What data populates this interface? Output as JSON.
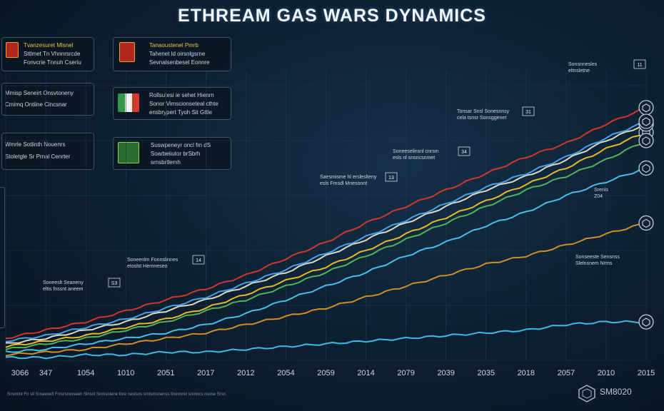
{
  "title": "ETHREAM GAS WARS DYNAMICS",
  "cards": [
    {
      "id": "card-1",
      "lines": [
        "Tvanzesuret Mlsnel",
        "Sttlmet Tn Vhnnrsrcde",
        "Fonvcrie Tnnuh Cseriu"
      ]
    },
    {
      "id": "card-2",
      "lines": [
        "Tanaoustenel Pmrb",
        "Tahenet ld oirsnlgsrne",
        "Sevnalsenbesel Eonnre"
      ]
    },
    {
      "id": "card-3",
      "lines": [
        "Mmisp Seneirt Onsvtoneny",
        "Cmimq Ontiine Cincsnar"
      ]
    },
    {
      "id": "card-4",
      "lines": [
        "Rollsutesi ie sehet Hienrn",
        "Sonor Vimscionseteal cthte",
        "ensbrypert Tyoh Sit Gttle"
      ]
    },
    {
      "id": "card-5",
      "lines": [
        "Wmrle Sotlinth Nouenrs",
        "Stoletgle Sr Prnal Cenrter"
      ]
    },
    {
      "id": "card-6",
      "lines": [
        "Suswpeneyr oncl fm dS",
        "Soarbeiiutor brSbrh",
        "srnsbrtlemh"
      ]
    }
  ],
  "annotations": [
    {
      "lines": [
        "Soneeslt Seaneny",
        "eltis fnssnt aneem"
      ],
      "tag": "S3"
    },
    {
      "lines": [
        "Soneenlm Fonnslinnes",
        "etoslst Hernneseo"
      ],
      "tag": "14"
    },
    {
      "lines": [
        "Saesmisme hl ersleslteny",
        "esls Fmsdl Mnesonnt"
      ],
      "tag": "13"
    },
    {
      "lines": [
        "Soneeselinsnl cnrsm",
        "esls nl snsncsnmet"
      ],
      "tag": "34"
    },
    {
      "lines": [
        "Tonsar Snsl Sonesnnsy",
        "cela tsnsr Sonsggenet"
      ],
      "tag": "31"
    },
    {
      "lines": [
        "Sonsnnesles",
        "eltnsletne"
      ],
      "tag": "11"
    },
    {
      "lines": [
        "Sonseeste Sensnss",
        "Slelnsnem Nrms"
      ],
      "tag": ""
    },
    {
      "lines": [
        "Srenis",
        "Z04"
      ],
      "tag": ""
    }
  ],
  "footer": "Snsmlnt Fn stl Srnaeoelt Fmsrsronseen Slnsnl Snmsnlene fnre neslsns srnlsmsnenss fnsnmrel snmncs nsnse Srsn",
  "logo_text": "SM8020",
  "chart_data": {
    "type": "line",
    "categories": [
      "3066",
      "347",
      "1054",
      "1010",
      "2051",
      "2017",
      "2012",
      "2054",
      "2059",
      "2014",
      "2079",
      "2039",
      "2035",
      "2018",
      "2057",
      "2010",
      "2015"
    ],
    "ylim": [
      0,
      100
    ],
    "series": [
      {
        "color": "#d8392c",
        "values": [
          8,
          11,
          14,
          18,
          22,
          26,
          31,
          37,
          43,
          50,
          56,
          62,
          68,
          74,
          79,
          86,
          92
        ]
      },
      {
        "color": "#f0c22a",
        "values": [
          5,
          7,
          9,
          12,
          15,
          19,
          24,
          29,
          34,
          40,
          46,
          52,
          58,
          64,
          70,
          77,
          83
        ]
      },
      {
        "color": "#e8e3c8",
        "values": [
          6,
          8,
          11,
          14,
          18,
          22,
          27,
          32,
          38,
          44,
          50,
          56,
          62,
          67,
          73,
          80,
          86
        ]
      },
      {
        "color": "#4aa8f0",
        "values": [
          7,
          9,
          12,
          15,
          19,
          23,
          28,
          33,
          39,
          45,
          51,
          57,
          63,
          68,
          74,
          81,
          87
        ]
      },
      {
        "color": "#58b95a",
        "values": [
          4,
          6,
          8,
          11,
          14,
          18,
          22,
          27,
          32,
          38,
          44,
          50,
          56,
          62,
          67,
          73,
          80
        ]
      },
      {
        "color": "#4cc6f5",
        "values": [
          3,
          4,
          6,
          8,
          10,
          13,
          17,
          22,
          27,
          32,
          38,
          43,
          49,
          54,
          60,
          65,
          70
        ]
      },
      {
        "color": "#d89428",
        "values": [
          2,
          3,
          4,
          6,
          8,
          10,
          13,
          16,
          19,
          23,
          27,
          31,
          35,
          38,
          42,
          46,
          50
        ]
      },
      {
        "color": "#3ec2f2",
        "values": [
          1,
          1,
          2,
          2,
          3,
          3,
          4,
          5,
          6,
          7,
          8,
          9,
          10,
          11,
          13,
          14,
          14
        ]
      }
    ]
  }
}
